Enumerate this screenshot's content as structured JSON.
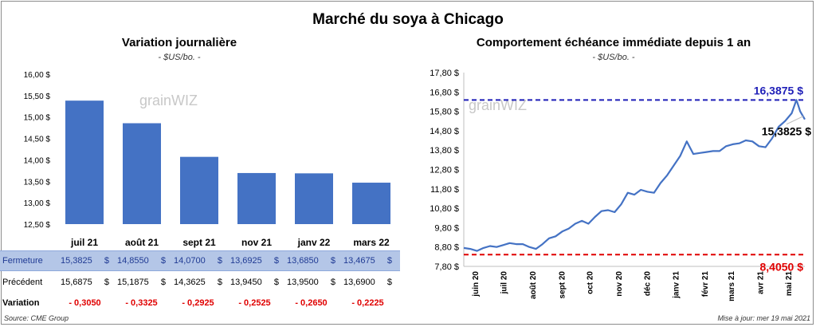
{
  "title": "Marché du soya à Chicago",
  "source": "Source: CME Group",
  "updated": "Mise à jour: mer 19 mai 2021",
  "watermark": "grainWIZ",
  "colors": {
    "bar": "#4472c4",
    "line": "#4472c4",
    "high": "#1f1fb8",
    "low": "#e00000",
    "table_highlight": "#b4c6e7"
  },
  "table": {
    "rows": [
      {
        "label": "Fermeture",
        "values": [
          "15,3825",
          "14,8550",
          "14,0700",
          "13,6925",
          "13,6850",
          "13,4675"
        ],
        "unit": "$"
      },
      {
        "label": "Précédent",
        "values": [
          "15,6875",
          "15,1875",
          "14,3625",
          "13,9450",
          "13,9500",
          "13,6900"
        ],
        "unit": "$"
      },
      {
        "label": "Variation",
        "values": [
          "- 0,3050",
          "- 0,3325",
          "- 0,2925",
          "- 0,2525",
          "- 0,2650",
          "- 0,2225"
        ]
      }
    ]
  },
  "chart_data": [
    {
      "type": "bar",
      "title": "Variation journalière",
      "subtitle": "- $US/bo. -",
      "categories": [
        "juil 21",
        "août 21",
        "sept 21",
        "nov 21",
        "janv 22",
        "mars 22"
      ],
      "values": [
        15.3825,
        14.855,
        14.07,
        13.6925,
        13.685,
        13.4675
      ],
      "ylim": [
        12.5,
        16.0
      ],
      "yticks": [
        "12,50 $",
        "13,00 $",
        "13,50 $",
        "14,00 $",
        "14,50 $",
        "15,00 $",
        "15,50 $",
        "16,00 $"
      ]
    },
    {
      "type": "line",
      "title": "Comportement échéance immédiate depuis 1 an",
      "subtitle": "- $US/bo. -",
      "ylim": [
        7.8,
        17.8
      ],
      "yticks": [
        "7,80 $",
        "8,80 $",
        "9,80 $",
        "10,80 $",
        "11,80 $",
        "12,80 $",
        "13,80 $",
        "14,80 $",
        "15,80 $",
        "16,80 $",
        "17,80 $"
      ],
      "xticks": [
        "juin 20",
        "juil 20",
        "août 20",
        "sept 20",
        "oct 20",
        "nov 20",
        "déc 20",
        "janv 21",
        "févr 21",
        "mars 21",
        "avr 21",
        "mai 21"
      ],
      "x": [
        "2020-05-20",
        "2020-05-27",
        "2020-06-03",
        "2020-06-10",
        "2020-06-17",
        "2020-06-24",
        "2020-07-01",
        "2020-07-08",
        "2020-07-15",
        "2020-07-22",
        "2020-07-29",
        "2020-08-05",
        "2020-08-12",
        "2020-08-19",
        "2020-08-26",
        "2020-09-02",
        "2020-09-09",
        "2020-09-16",
        "2020-09-23",
        "2020-09-30",
        "2020-10-07",
        "2020-10-14",
        "2020-10-21",
        "2020-10-28",
        "2020-11-04",
        "2020-11-11",
        "2020-11-18",
        "2020-11-25",
        "2020-12-02",
        "2020-12-09",
        "2020-12-16",
        "2020-12-23",
        "2020-12-30",
        "2021-01-06",
        "2021-01-13",
        "2021-01-20",
        "2021-01-27",
        "2021-02-03",
        "2021-02-10",
        "2021-02-17",
        "2021-02-24",
        "2021-03-03",
        "2021-03-10",
        "2021-03-17",
        "2021-03-24",
        "2021-03-31",
        "2021-04-07",
        "2021-04-14",
        "2021-04-21",
        "2021-04-28",
        "2021-05-05",
        "2021-05-10",
        "2021-05-12",
        "2021-05-14",
        "2021-05-19"
      ],
      "values": [
        8.75,
        8.7,
        8.6,
        8.75,
        8.85,
        8.8,
        8.9,
        9.0,
        8.95,
        8.95,
        8.8,
        8.7,
        8.95,
        9.25,
        9.35,
        9.6,
        9.75,
        10.0,
        10.15,
        10.0,
        10.35,
        10.65,
        10.7,
        10.6,
        11.0,
        11.6,
        11.5,
        11.75,
        11.65,
        11.6,
        12.1,
        12.5,
        13.0,
        13.5,
        14.25,
        13.6,
        13.65,
        13.7,
        13.75,
        13.75,
        14.0,
        14.1,
        14.15,
        14.3,
        14.25,
        14.0,
        13.95,
        14.4,
        15.0,
        15.3,
        15.7,
        16.3875,
        16.1,
        15.8,
        15.3825
      ],
      "annotations": [
        {
          "label": "16,3875 $",
          "value": 16.3875
        },
        {
          "label": "15,3825 $",
          "value": 15.3825
        },
        {
          "label": "8,4050 $",
          "value": 8.405
        }
      ]
    }
  ]
}
